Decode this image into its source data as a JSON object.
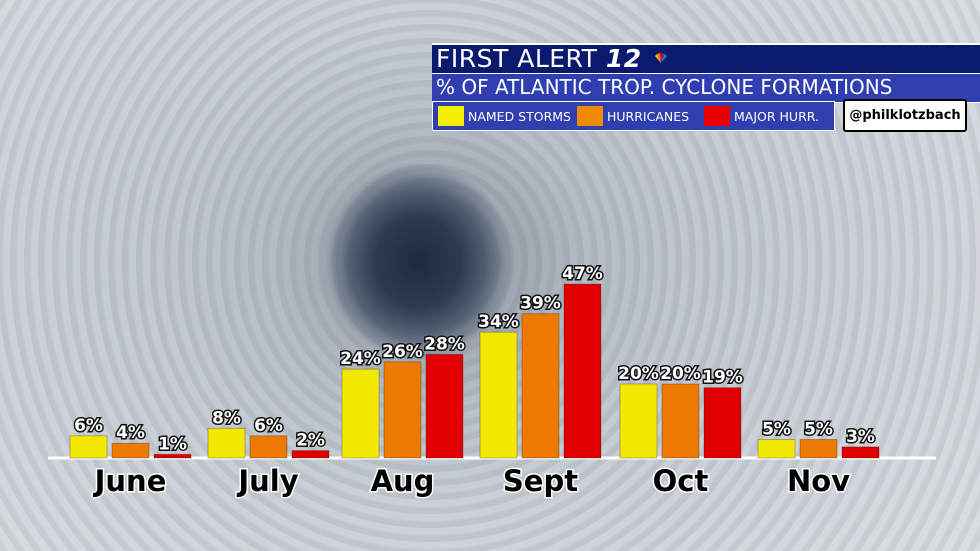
{
  "header": {
    "brand_text": "FIRST ALERT",
    "brand_number": "12",
    "subtitle": "% OF ATLANTIC TROP. CYCLONE FORMATIONS"
  },
  "legend": [
    {
      "label": "NAMED STORMS",
      "color": "#f5f000"
    },
    {
      "label": "HURRICANES",
      "color": "#f08a00"
    },
    {
      "label": "MAJOR HURR.",
      "color": "#e60000"
    }
  ],
  "handle": "@philklotzbach",
  "chart_data": {
    "type": "bar",
    "title": "% OF ATLANTIC TROP. CYCLONE FORMATIONS",
    "categories": [
      "June",
      "July",
      "Aug",
      "Sept",
      "Oct",
      "Nov"
    ],
    "series": [
      {
        "name": "NAMED STORMS",
        "color": "#f2e800",
        "values": [
          6,
          8,
          24,
          34,
          20,
          5
        ],
        "labels": [
          "6%",
          "8%",
          "24%",
          "34%",
          "20%",
          "5%"
        ]
      },
      {
        "name": "HURRICANES",
        "color": "#ec7a00",
        "values": [
          4,
          6,
          26,
          39,
          20,
          5
        ],
        "labels": [
          "4%",
          "6%",
          "26%",
          "39%",
          "20%",
          "5%"
        ]
      },
      {
        "name": "MAJOR HURR.",
        "color": "#e00000",
        "values": [
          1,
          2,
          28,
          47,
          19,
          3
        ],
        "labels": [
          "1%",
          "2%",
          "28%",
          "47%",
          "19%",
          "3%"
        ]
      }
    ],
    "legend_position": "top-right",
    "grid": false,
    "ylim": [
      0,
      50
    ]
  }
}
